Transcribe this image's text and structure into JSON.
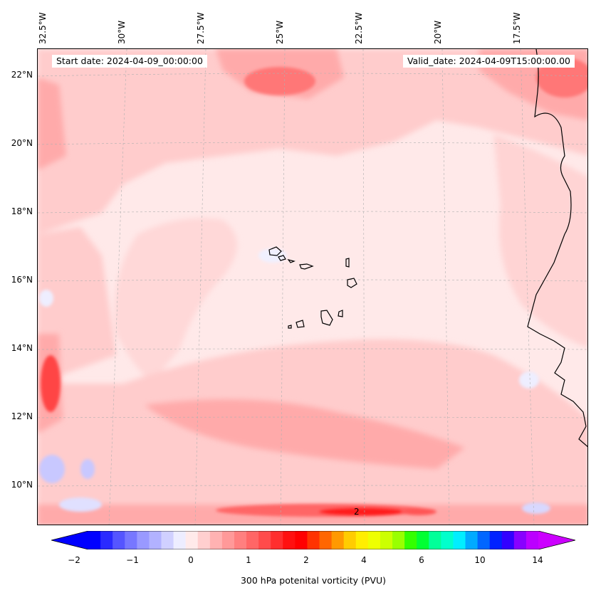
{
  "map": {
    "title_left": "Start date: 2024-04-09_00:00:00",
    "title_right": "Valid_date: 2024-04-09T15:00:00.00",
    "lon_labels": [
      "32.5°W",
      "30°W",
      "27.5°W",
      "25°W",
      "22.5°W",
      "20°W",
      "17.5°W"
    ],
    "lat_labels": [
      "22°N",
      "20°N",
      "18°N",
      "16°N",
      "14°N",
      "12°N",
      "10°N"
    ],
    "contour_label": "2",
    "field_colors": {
      "background": "#ffe9e9",
      "light_pink": "#ffcccc",
      "pink": "#ffaaaa",
      "salmon": "#ff8888",
      "red": "#ff5555",
      "deep_red": "#ff2222",
      "light_blue": "#eeeeff",
      "blue": "#c8c8ff",
      "coast": "#000000"
    }
  },
  "colorbar": {
    "label": "300 hPa potenital vorticity (PVU)",
    "tick_labels": [
      "−2",
      "−1",
      "0",
      "1",
      "2",
      "4",
      "6",
      "10",
      "14"
    ],
    "colors": [
      "#0000ff",
      "#2a2aff",
      "#5555ff",
      "#7777ff",
      "#9999ff",
      "#b2b2ff",
      "#d0d0ff",
      "#ededff",
      "#ffeaea",
      "#ffcfcf",
      "#ffb2b2",
      "#ff9999",
      "#ff7f7f",
      "#ff6666",
      "#ff4b4b",
      "#ff2e2e",
      "#ff1010",
      "#ff0000",
      "#ff3300",
      "#ff6600",
      "#ff9900",
      "#ffcc00",
      "#ffee00",
      "#eeff00",
      "#ccff00",
      "#99ff00",
      "#33ff00",
      "#00ff33",
      "#00ff99",
      "#00ffcc",
      "#00eeff",
      "#00aaff",
      "#0066ff",
      "#0022ff",
      "#3300ff",
      "#8800ff",
      "#bb00ff"
    ],
    "extend_low_color": "#0000ff",
    "extend_high_color": "#cc00ff"
  }
}
